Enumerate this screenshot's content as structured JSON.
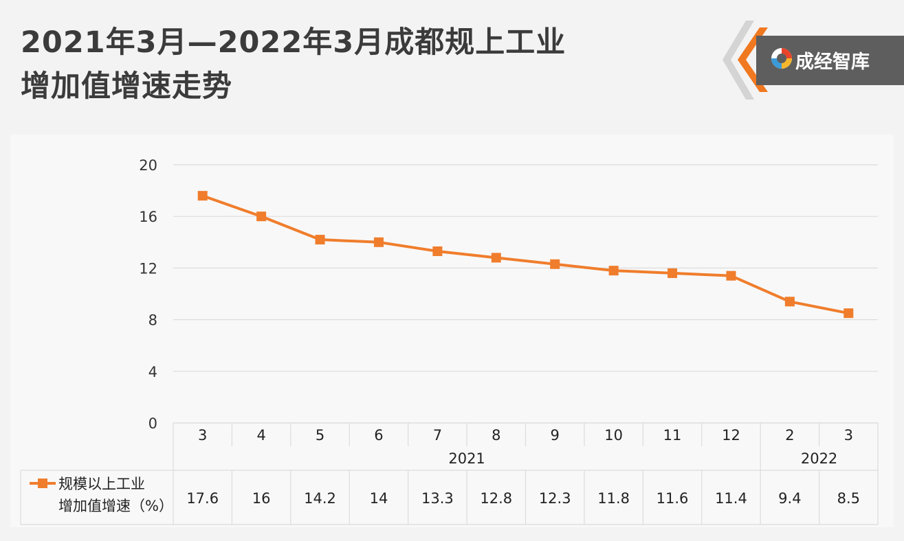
{
  "title": {
    "line1": "2021年3月—2022年3月成都规上工业",
    "line2": "增加值增速走势"
  },
  "brand": {
    "name": "成经智库",
    "colors": {
      "accent": "#f07820",
      "box": "#5e5e5e",
      "chevron": "#d0d0d0"
    }
  },
  "chart_data": {
    "type": "line",
    "categories": [
      "3",
      "4",
      "5",
      "6",
      "7",
      "8",
      "9",
      "10",
      "11",
      "12",
      "2",
      "3"
    ],
    "year_groups": [
      {
        "label": "2021",
        "count": 10
      },
      {
        "label": "2022",
        "count": 2
      }
    ],
    "series": [
      {
        "name_line1": "规模以上工业",
        "name_line2": "增加值增速（%）",
        "values": [
          17.6,
          16,
          14.2,
          14,
          13.3,
          12.8,
          12.3,
          11.8,
          11.6,
          11.4,
          9.4,
          8.5
        ],
        "labels": [
          "17.6",
          "16",
          "14.2",
          "14",
          "13.3",
          "12.8",
          "12.3",
          "11.8",
          "11.6",
          "11.4",
          "9.4",
          "8.5"
        ],
        "color": "#f07d2c",
        "marker": "square"
      }
    ],
    "yticks": [
      "0",
      "4",
      "8",
      "12",
      "16",
      "20"
    ],
    "ylim": [
      0,
      20
    ],
    "grid": true,
    "legend": "data-table"
  }
}
